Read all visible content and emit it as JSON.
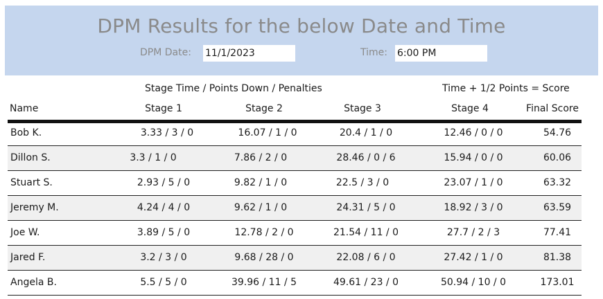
{
  "header": {
    "title": "DPM Results for the below Date and Time",
    "date_label": "DPM Date:",
    "date_value": "11/1/2023",
    "time_label": "Time:",
    "time_value": "6:00 PM"
  },
  "captions": {
    "stages": "Stage Time / Points Down / Penalties",
    "score_formula": "Time + 1/2 Points = Score"
  },
  "columns": [
    "Name",
    "Stage 1",
    "Stage 2",
    "Stage 3",
    "Stage 4",
    "Final Score"
  ],
  "rows": [
    {
      "name": "Bob K.",
      "s1": "3.33 / 3 / 0",
      "s2": "16.07 / 1 / 0",
      "s3": "20.4 / 1 / 0",
      "s4": "12.46 / 0 / 0",
      "score": "54.76"
    },
    {
      "name": "Dillon S.",
      "s1": "3.3 / 1 / 0",
      "s2": "7.86 / 2 / 0",
      "s3": "28.46 / 0 / 6",
      "s4": "15.94 / 0 / 0",
      "score": "60.06"
    },
    {
      "name": "Stuart S.",
      "s1": "2.93 / 5 / 0",
      "s2": "9.82 / 1 / 0",
      "s3": "22.5 / 3 / 0",
      "s4": "23.07 / 1 / 0",
      "score": "63.32"
    },
    {
      "name": "Jeremy M.",
      "s1": "4.24 / 4 / 0",
      "s2": "9.62 / 1 / 0",
      "s3": "24.31 / 5 / 0",
      "s4": "18.92 / 3 / 0",
      "score": "63.59"
    },
    {
      "name": "Joe W.",
      "s1": "3.89 / 5 / 0",
      "s2": "12.78 / 2 / 0",
      "s3": "21.54 / 11 / 0",
      "s4": "27.7 / 2 / 3",
      "score": "77.41"
    },
    {
      "name": "Jared F.",
      "s1": "3.2 / 3 / 0",
      "s2": "9.68 / 28 / 0",
      "s3": "22.08 / 6 / 0",
      "s4": "27.42 / 1 / 0",
      "score": "81.38"
    },
    {
      "name": "Angela B.",
      "s1": "5.5 / 5 / 0",
      "s2": "39.96 / 11 / 5",
      "s3": "49.61 / 23 / 0",
      "s4": "50.94 / 10 / 0",
      "score": "173.01"
    }
  ]
}
